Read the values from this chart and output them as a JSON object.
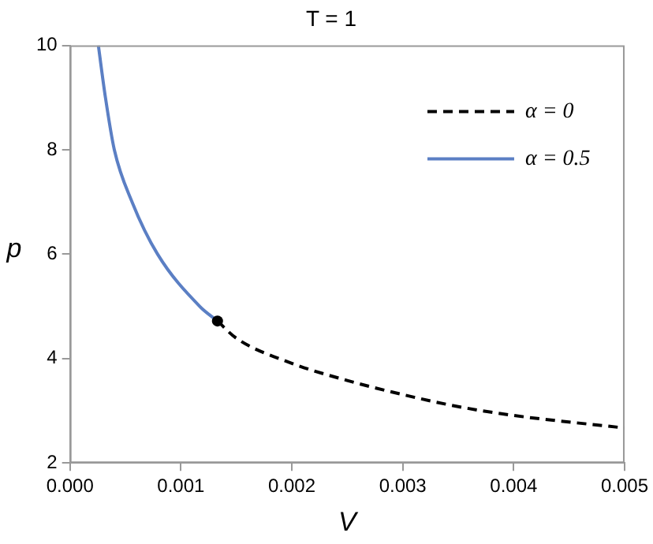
{
  "chart_data": {
    "type": "line",
    "title": "T = 1",
    "xlabel": "V",
    "ylabel": "p",
    "xlim": [
      0,
      0.005
    ],
    "ylim": [
      2,
      10
    ],
    "xticks": [
      {
        "value": 0,
        "label": "0.000"
      },
      {
        "value": 0.001,
        "label": "0.001"
      },
      {
        "value": 0.002,
        "label": "0.002"
      },
      {
        "value": 0.003,
        "label": "0.003"
      },
      {
        "value": 0.004,
        "label": "0.004"
      },
      {
        "value": 0.005,
        "label": "0.005"
      }
    ],
    "yticks": [
      2,
      4,
      6,
      8,
      10
    ],
    "grid": false,
    "legend": "top right",
    "marker": "none",
    "series": [
      {
        "name": "α = 0",
        "color": "#000000",
        "line_style": "dashed",
        "x": [
          0.00133,
          0.0015,
          0.002,
          0.0025,
          0.003,
          0.0035,
          0.004,
          0.005
        ],
        "values": [
          4.72,
          4.39,
          3.91,
          3.58,
          3.31,
          3.08,
          2.91,
          2.67
        ]
      },
      {
        "name": "α = 0.5",
        "color": "#5b7fc4",
        "line_style": "solid",
        "x": [
          0.000256,
          0.00032,
          0.0004,
          0.00056,
          0.00079,
          0.00117,
          0.00133
        ],
        "values": [
          10,
          9,
          8,
          7,
          6,
          5,
          4.72
        ]
      },
      {
        "type": "scatter",
        "color": "#000000",
        "marker": "circle",
        "x": [
          0.00133
        ],
        "values": [
          4.72
        ]
      }
    ]
  }
}
